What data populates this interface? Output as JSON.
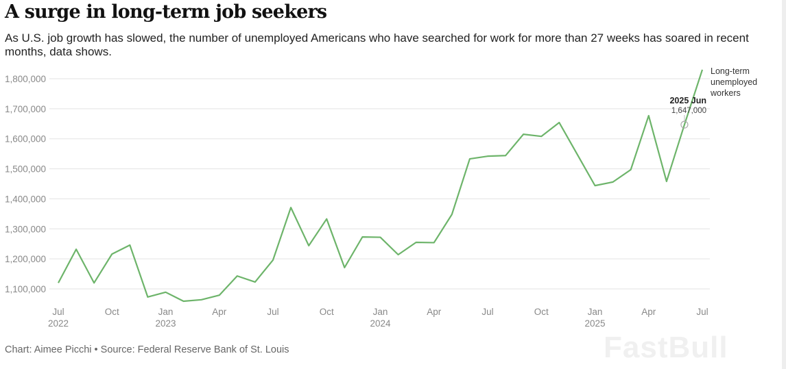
{
  "title": "A surge in long-term job seekers",
  "subtitle": "As U.S. job growth has slowed, the number of unemployed Americans who have searched for work for more than 27 weeks has soared in recent months, data shows.",
  "source": "Chart: Aimee Picchi • Source: Federal Reserve Bank of St. Louis",
  "watermark": "FastBull",
  "colors": {
    "line": "#6db46a",
    "grid": "#e3e3e3",
    "tick": "#888888"
  },
  "chart_data": {
    "type": "line",
    "title": "A surge in long-term job seekers",
    "xlabel": "",
    "ylabel": "",
    "ylim": [
      1040000,
      1840000
    ],
    "yticks": [
      1100000,
      1200000,
      1300000,
      1400000,
      1500000,
      1600000,
      1700000,
      1800000
    ],
    "ytick_labels": [
      "1,100,000",
      "1,200,000",
      "1,300,000",
      "1,400,000",
      "1,500,000",
      "1,600,000",
      "1,700,000",
      "1,800,000"
    ],
    "xticks": [
      {
        "index": 0,
        "label": "Jul",
        "year": "2022"
      },
      {
        "index": 3,
        "label": "Oct",
        "year": ""
      },
      {
        "index": 6,
        "label": "Jan",
        "year": "2023"
      },
      {
        "index": 9,
        "label": "Apr",
        "year": ""
      },
      {
        "index": 12,
        "label": "Jul",
        "year": ""
      },
      {
        "index": 15,
        "label": "Oct",
        "year": ""
      },
      {
        "index": 18,
        "label": "Jan",
        "year": "2024"
      },
      {
        "index": 21,
        "label": "Apr",
        "year": ""
      },
      {
        "index": 24,
        "label": "Jul",
        "year": ""
      },
      {
        "index": 27,
        "label": "Oct",
        "year": ""
      },
      {
        "index": 30,
        "label": "Jan",
        "year": "2025"
      },
      {
        "index": 33,
        "label": "Apr",
        "year": ""
      },
      {
        "index": 36,
        "label": "Jul",
        "year": ""
      }
    ],
    "grid": true,
    "series": [
      {
        "name": "Long-term unemployed workers",
        "label_lines": [
          "Long-term",
          "unemployed",
          "workers"
        ],
        "x": [
          "2022-07",
          "2022-08",
          "2022-09",
          "2022-10",
          "2022-11",
          "2022-12",
          "2023-01",
          "2023-02",
          "2023-03",
          "2023-04",
          "2023-05",
          "2023-06",
          "2023-07",
          "2023-08",
          "2023-09",
          "2023-10",
          "2023-11",
          "2023-12",
          "2024-01",
          "2024-02",
          "2024-03",
          "2024-04",
          "2024-05",
          "2024-06",
          "2024-07",
          "2024-08",
          "2024-09",
          "2024-10",
          "2024-11",
          "2024-12",
          "2025-01",
          "2025-02",
          "2025-03",
          "2025-04",
          "2025-05",
          "2025-06",
          "2025-07"
        ],
        "values": [
          1120000,
          1232000,
          1120000,
          1216000,
          1246000,
          1073000,
          1089000,
          1059000,
          1064000,
          1079000,
          1143000,
          1123000,
          1196000,
          1371000,
          1244000,
          1333000,
          1171000,
          1273000,
          1272000,
          1214000,
          1255000,
          1254000,
          1348000,
          1533000,
          1542000,
          1544000,
          1615000,
          1608000,
          1654000,
          1549000,
          1444000,
          1456000,
          1497000,
          1677000,
          1458000,
          1647000,
          1830000
        ]
      }
    ],
    "annotation": {
      "index": 35,
      "title": "2025 Jun",
      "value_label": "1,647,000"
    }
  }
}
